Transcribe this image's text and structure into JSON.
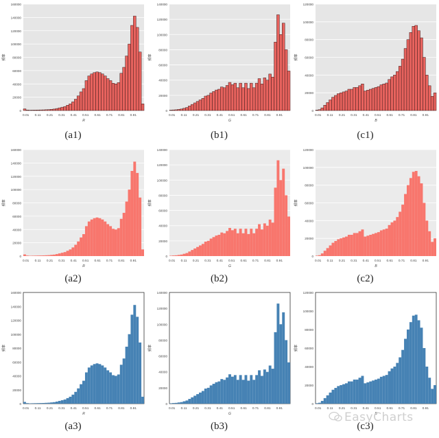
{
  "chart_data": [
    {
      "id": "a1",
      "caption": "(a1)",
      "type": "bar",
      "xlabel": "R",
      "ylabel": "频率",
      "ylim": [
        0,
        160000
      ],
      "yticks": [
        0,
        20000,
        40000,
        60000,
        80000,
        100000,
        120000,
        140000,
        160000
      ],
      "xticks": [
        "0.01",
        "0.11",
        "0.21",
        "0.31",
        "0.41",
        "0.51",
        "0.61",
        "0.71",
        "0.81",
        "0.91"
      ],
      "values": [
        2500,
        800,
        500,
        600,
        700,
        800,
        900,
        1000,
        1200,
        1400,
        1800,
        2200,
        3000,
        4000,
        5000,
        6000,
        8000,
        10000,
        13000,
        17000,
        22000,
        28000,
        33000,
        45000,
        52000,
        55000,
        57000,
        58000,
        57000,
        55000,
        52000,
        48000,
        45000,
        41000,
        40000,
        42000,
        56000,
        65000,
        82000,
        100000,
        128000,
        142000,
        125000,
        88000,
        10000
      ]
    },
    {
      "id": "b1",
      "caption": "(b1)",
      "type": "bar",
      "xlabel": "G",
      "ylabel": "频率",
      "ylim": [
        0,
        140000
      ],
      "yticks": [
        0,
        20000,
        40000,
        60000,
        80000,
        100000,
        120000,
        140000
      ],
      "xticks": [
        "0.01",
        "0.11",
        "0.21",
        "0.31",
        "0.41",
        "0.51",
        "0.61",
        "0.71",
        "0.81",
        "0.91"
      ],
      "values": [
        500,
        800,
        1000,
        1500,
        2000,
        3000,
        4000,
        6000,
        8000,
        10000,
        12000,
        14000,
        16000,
        19000,
        20000,
        23000,
        25000,
        27000,
        28000,
        31000,
        30000,
        33000,
        37000,
        34000,
        36000,
        30000,
        36000,
        30000,
        36000,
        29000,
        36000,
        30000,
        36000,
        42000,
        35000,
        43000,
        40000,
        48000,
        44000,
        90000,
        126000,
        100000,
        115000,
        80000,
        52000
      ]
    },
    {
      "id": "c1",
      "caption": "(c1)",
      "type": "bar",
      "xlabel": "B",
      "ylabel": "频率",
      "ylim": [
        0,
        120000
      ],
      "yticks": [
        0,
        20000,
        40000,
        60000,
        80000,
        100000,
        120000
      ],
      "xticks": [
        "0.01",
        "0.11",
        "0.21",
        "0.31",
        "0.41",
        "0.51",
        "0.61",
        "0.71",
        "0.81",
        "0.91"
      ],
      "values": [
        500,
        1000,
        3000,
        6000,
        9000,
        12000,
        15000,
        17000,
        19000,
        20000,
        21000,
        22000,
        24000,
        24000,
        26000,
        26000,
        28000,
        30000,
        22000,
        23000,
        24000,
        25000,
        26000,
        27000,
        29000,
        30000,
        31000,
        35000,
        38000,
        40000,
        44000,
        50000,
        58000,
        70000,
        80000,
        88000,
        95000,
        96000,
        90000,
        82000,
        60000,
        40000,
        28000,
        16000,
        20000
      ]
    },
    {
      "id": "a2",
      "caption": "(a2)",
      "type": "bar",
      "xlabel": "R",
      "ylabel": "频率",
      "ylim": [
        0,
        160000
      ],
      "yticks": [
        0,
        20000,
        40000,
        60000,
        80000,
        100000,
        120000,
        140000,
        160000
      ],
      "xticks": [
        "0.01",
        "0.11",
        "0.21",
        "0.31",
        "0.41",
        "0.51",
        "0.61",
        "0.71",
        "0.81",
        "0.91"
      ],
      "values": [
        2500,
        800,
        500,
        600,
        700,
        800,
        900,
        1000,
        1200,
        1400,
        1800,
        2200,
        3000,
        4000,
        5000,
        6000,
        8000,
        10000,
        13000,
        17000,
        22000,
        28000,
        33000,
        45000,
        52000,
        55000,
        57000,
        58000,
        57000,
        55000,
        52000,
        48000,
        45000,
        41000,
        40000,
        42000,
        56000,
        65000,
        82000,
        100000,
        128000,
        142000,
        125000,
        88000,
        10000
      ]
    },
    {
      "id": "b2",
      "caption": "(b2)",
      "type": "bar",
      "xlabel": "G",
      "ylabel": "频率",
      "ylim": [
        0,
        140000
      ],
      "yticks": [
        0,
        20000,
        40000,
        60000,
        80000,
        100000,
        120000,
        140000
      ],
      "xticks": [
        "0.01",
        "0.11",
        "0.21",
        "0.31",
        "0.41",
        "0.51",
        "0.61",
        "0.71",
        "0.81",
        "0.91"
      ],
      "values": [
        500,
        800,
        1000,
        1500,
        2000,
        3000,
        4000,
        6000,
        8000,
        10000,
        12000,
        14000,
        16000,
        19000,
        20000,
        23000,
        25000,
        27000,
        28000,
        31000,
        30000,
        33000,
        37000,
        34000,
        36000,
        30000,
        36000,
        30000,
        36000,
        29000,
        36000,
        30000,
        36000,
        42000,
        35000,
        43000,
        40000,
        48000,
        44000,
        90000,
        126000,
        100000,
        115000,
        80000,
        52000
      ]
    },
    {
      "id": "c2",
      "caption": "(c2)",
      "type": "bar",
      "xlabel": "B",
      "ylabel": "频率",
      "ylim": [
        0,
        120000
      ],
      "yticks": [
        0,
        20000,
        40000,
        60000,
        80000,
        100000,
        120000
      ],
      "xticks": [
        "0.01",
        "0.11",
        "0.21",
        "0.31",
        "0.41",
        "0.51",
        "0.61",
        "0.71",
        "0.81",
        "0.91"
      ],
      "values": [
        500,
        1000,
        3000,
        6000,
        9000,
        12000,
        15000,
        17000,
        19000,
        20000,
        21000,
        22000,
        24000,
        24000,
        26000,
        26000,
        28000,
        30000,
        22000,
        23000,
        24000,
        25000,
        26000,
        27000,
        29000,
        30000,
        31000,
        35000,
        38000,
        40000,
        44000,
        50000,
        58000,
        70000,
        80000,
        88000,
        95000,
        96000,
        90000,
        82000,
        60000,
        40000,
        28000,
        16000,
        20000
      ]
    },
    {
      "id": "a3",
      "caption": "(a3)",
      "type": "bar",
      "xlabel": "R",
      "ylabel": "频率",
      "ylim": [
        0,
        160000
      ],
      "yticks": [
        0,
        20000,
        40000,
        60000,
        80000,
        100000,
        120000,
        140000,
        160000
      ],
      "xticks": [
        "0.01",
        "0.11",
        "0.21",
        "0.31",
        "0.41",
        "0.51",
        "0.61",
        "0.71",
        "0.81",
        "0.91"
      ],
      "values": [
        2500,
        800,
        500,
        600,
        700,
        800,
        900,
        1000,
        1200,
        1400,
        1800,
        2200,
        3000,
        4000,
        5000,
        6000,
        8000,
        10000,
        13000,
        17000,
        22000,
        28000,
        33000,
        45000,
        52000,
        55000,
        57000,
        58000,
        57000,
        55000,
        52000,
        48000,
        45000,
        41000,
        40000,
        42000,
        56000,
        65000,
        82000,
        100000,
        128000,
        142000,
        125000,
        88000,
        10000
      ]
    },
    {
      "id": "b3",
      "caption": "(b3)",
      "type": "bar",
      "xlabel": "G",
      "ylabel": "频率",
      "ylim": [
        0,
        140000
      ],
      "yticks": [
        0,
        20000,
        40000,
        60000,
        80000,
        100000,
        120000,
        140000
      ],
      "xticks": [
        "0.01",
        "0.11",
        "0.21",
        "0.31",
        "0.41",
        "0.51",
        "0.61",
        "0.71",
        "0.81",
        "0.91"
      ],
      "values": [
        500,
        800,
        1000,
        1500,
        2000,
        3000,
        4000,
        6000,
        8000,
        10000,
        12000,
        14000,
        16000,
        19000,
        20000,
        23000,
        25000,
        27000,
        28000,
        31000,
        30000,
        33000,
        37000,
        34000,
        36000,
        30000,
        36000,
        30000,
        36000,
        29000,
        36000,
        30000,
        36000,
        42000,
        35000,
        43000,
        40000,
        48000,
        44000,
        90000,
        126000,
        100000,
        115000,
        80000,
        52000
      ]
    },
    {
      "id": "c3",
      "caption": "(c3)",
      "type": "bar",
      "xlabel": "B",
      "ylabel": "频率",
      "ylim": [
        0,
        120000
      ],
      "yticks": [
        0,
        20000,
        40000,
        60000,
        80000,
        100000,
        120000
      ],
      "xticks": [
        "0.01",
        "0.11",
        "0.21",
        "0.31",
        "0.41",
        "0.51",
        "0.61",
        "0.71",
        "0.81",
        "0.91"
      ],
      "values": [
        500,
        1000,
        3000,
        6000,
        9000,
        12000,
        15000,
        17000,
        19000,
        20000,
        21000,
        22000,
        24000,
        24000,
        26000,
        26000,
        28000,
        30000,
        22000,
        23000,
        24000,
        25000,
        26000,
        27000,
        29000,
        30000,
        31000,
        35000,
        38000,
        40000,
        44000,
        50000,
        58000,
        70000,
        80000,
        88000,
        95000,
        96000,
        90000,
        82000,
        60000,
        40000,
        28000,
        16000,
        20000
      ]
    }
  ],
  "styles": {
    "row1": {
      "bar_fill": "#e8635e",
      "bar_stroke": "#3a1a1a",
      "bg": "#e6e6e6",
      "grid": "#ffffff"
    },
    "row2": {
      "bar_fill": "#f8766d",
      "bar_stroke": "none",
      "bg": "#ebebeb",
      "grid": "#ffffff"
    },
    "row3": {
      "bar_fill": "#4682b4",
      "bar_stroke": "none",
      "bg": "#ffffff",
      "grid": "none"
    }
  },
  "watermark": "EasyCharts"
}
